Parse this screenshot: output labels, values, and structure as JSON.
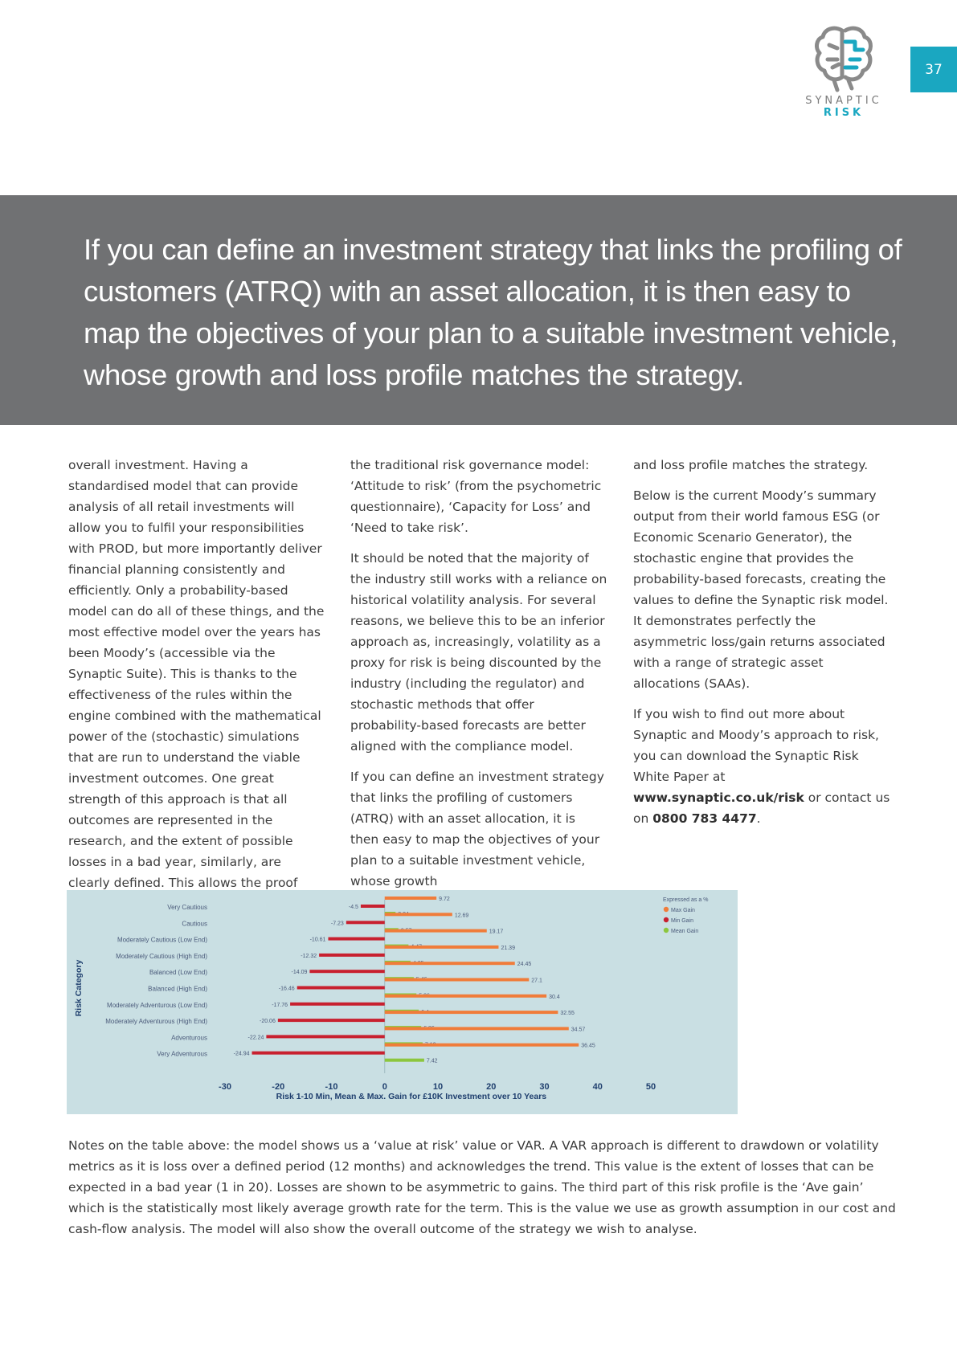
{
  "page": {
    "number": "37"
  },
  "logo": {
    "brand_line1": "SYNAPTIC",
    "brand_line2": "RISK"
  },
  "banner": {
    "headline": "If you can define an investment strategy that links the profiling of customers (ATRQ) with an asset allocation, it is then easy to map the objectives of your plan to a suitable investment vehicle, whose growth and loss profile matches the strategy."
  },
  "columns": {
    "col1": {
      "p1": "overall investment. Having a standardised model that can provide analysis of all retail investments will allow you to fulfil your responsibilities with PROD, but more importantly deliver financial planning consistently and efficiently. Only a probability-based model can do all of these things, and the most effective model over the years has been Moody’s (accessible via the Synaptic Suite). This is thanks to the effectiveness of the rules within the engine combined with the mathematical power of the (stochastic) simulations that are run to understand the viable investment outcomes. One great strength of this approach is that all outcomes are represented in the research, and the extent of possible losses in a bad year, similarly, are clearly defined. This allows the proof points to be delivered around"
    },
    "col2": {
      "p1": "the traditional risk governance model: ‘Attitude to risk’ (from the psychometric questionnaire), ‘Capacity for Loss’ and ‘Need to take risk’.",
      "p2": "It should be noted that the majority of the industry still works with a reliance on historical volatility analysis. For several reasons, we believe this to be an inferior approach as, increasingly, volatility as a proxy for risk is being discounted by the industry (including the regulator) and stochastic methods that offer probability-based forecasts are better aligned with the compliance model.",
      "p3": "If you can define an investment strategy that links the profiling of customers (ATRQ) with an asset allocation, it is then easy to map the objectives of your plan to a suitable investment vehicle, whose growth"
    },
    "col3": {
      "p1": "and loss profile matches the strategy.",
      "p2": "Below is the current Moody’s summary output from their world famous ESG (or Economic Scenario Generator), the stochastic engine that provides the probability-based forecasts, creating the values to define the Synaptic risk model. It demonstrates perfectly the asymmetric loss/gain returns associated with a range of strategic asset allocations (SAAs).",
      "p3_a": "If you wish to find out more about Synaptic and Moody’s approach to risk, you can download the Synaptic Risk White Paper at ",
      "p3_link": "www.synaptic.co.uk/risk",
      "p3_b": " or contact us on ",
      "p3_phone": "0800 783 4477",
      "p3_c": "."
    }
  },
  "chart_data": {
    "type": "bar",
    "orientation": "horizontal",
    "categories": [
      "Very Cautious",
      "Cautious",
      "Moderately Cautious (Low End)",
      "Moderately Cautious (High End)",
      "Balanced (Low End)",
      "Balanced (High End)",
      "Moderately Adventurous (Low End)",
      "Moderately Adventurous (High End)",
      "Adventurous",
      "Very Adventurous"
    ],
    "series": [
      {
        "name": "Max Gain",
        "color": "#f07c3a",
        "values": [
          9.72,
          12.69,
          19.17,
          21.39,
          24.45,
          27.1,
          30.4,
          32.55,
          34.57,
          36.45
        ]
      },
      {
        "name": "Min Gain",
        "color": "#c8202f",
        "values": [
          -4.5,
          -7.23,
          -10.61,
          -12.32,
          -14.09,
          -16.46,
          -17.76,
          -20.06,
          -22.24,
          -24.94
        ]
      },
      {
        "name": "Mean Gain",
        "color": "#8cc63e",
        "values": [
          2.04,
          2.57,
          4.47,
          4.85,
          5.46,
          5.96,
          6.4,
          6.86,
          7.12,
          7.42
        ]
      }
    ],
    "xlabel": "Risk 1-10 Min, Mean & Max. Gain for £10K Investment over 10 Years",
    "ylabel": "Risk Category",
    "legend_title": "Expressed as a %",
    "legend_position": "top-right",
    "xlim": [
      -30,
      50
    ],
    "xticks": [
      "-30",
      "-20",
      "-10",
      "0",
      "10",
      "20",
      "30",
      "40",
      "50"
    ],
    "grid": false
  },
  "notes": "Notes on the table above: the model shows us a ‘value at risk’ value or VAR. A VAR approach is different to drawdown or volatility metrics as it is loss over a defined period (12 months) and acknowledges the trend. This value is the extent of losses that can be expected in a bad year (1 in 20). Losses are shown to be asymmetric to gains. The third part of this risk profile is the ‘Ave gain’ which is the statistically most likely average growth rate for the term. This is the value we use as growth assumption in our cost and cash-flow analysis. The model will also show the overall outcome of the strategy we wish to analyse."
}
